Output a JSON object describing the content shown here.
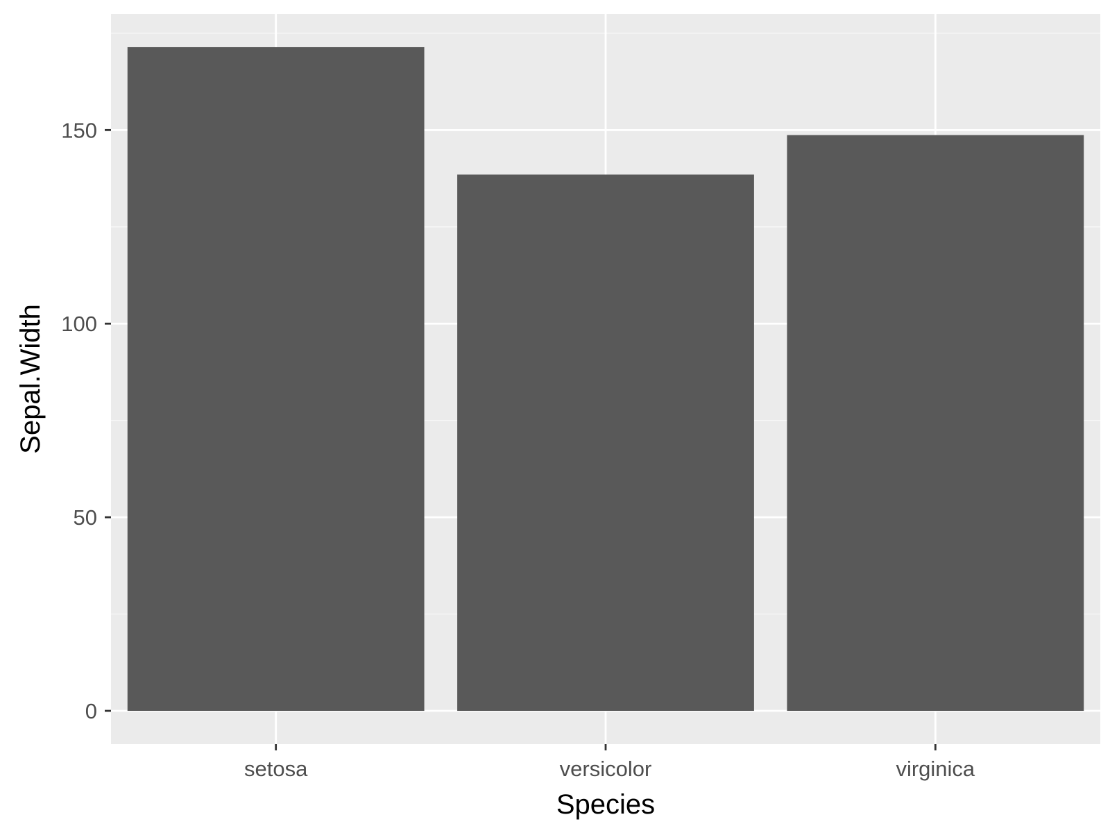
{
  "chart_data": {
    "type": "bar",
    "categories": [
      "setosa",
      "versicolor",
      "virginica"
    ],
    "values": [
      171.4,
      138.5,
      148.7
    ],
    "xlabel": "Species",
    "ylabel": "Sepal.Width",
    "ylim": [
      -8.6,
      180
    ],
    "yticks": [
      0,
      50,
      100,
      150
    ],
    "ytick_labels": [
      "0",
      "50",
      "100",
      "150"
    ],
    "grid": true,
    "legend": "none",
    "colors": {
      "panel_background": "#ebebeb",
      "grid_major": "#ffffff",
      "grid_minor": "#f7f7f7",
      "bar_fill": "#595959",
      "tick_mark": "#333333",
      "tick_label": "#4d4d4d",
      "axis_title": "#000000"
    }
  }
}
